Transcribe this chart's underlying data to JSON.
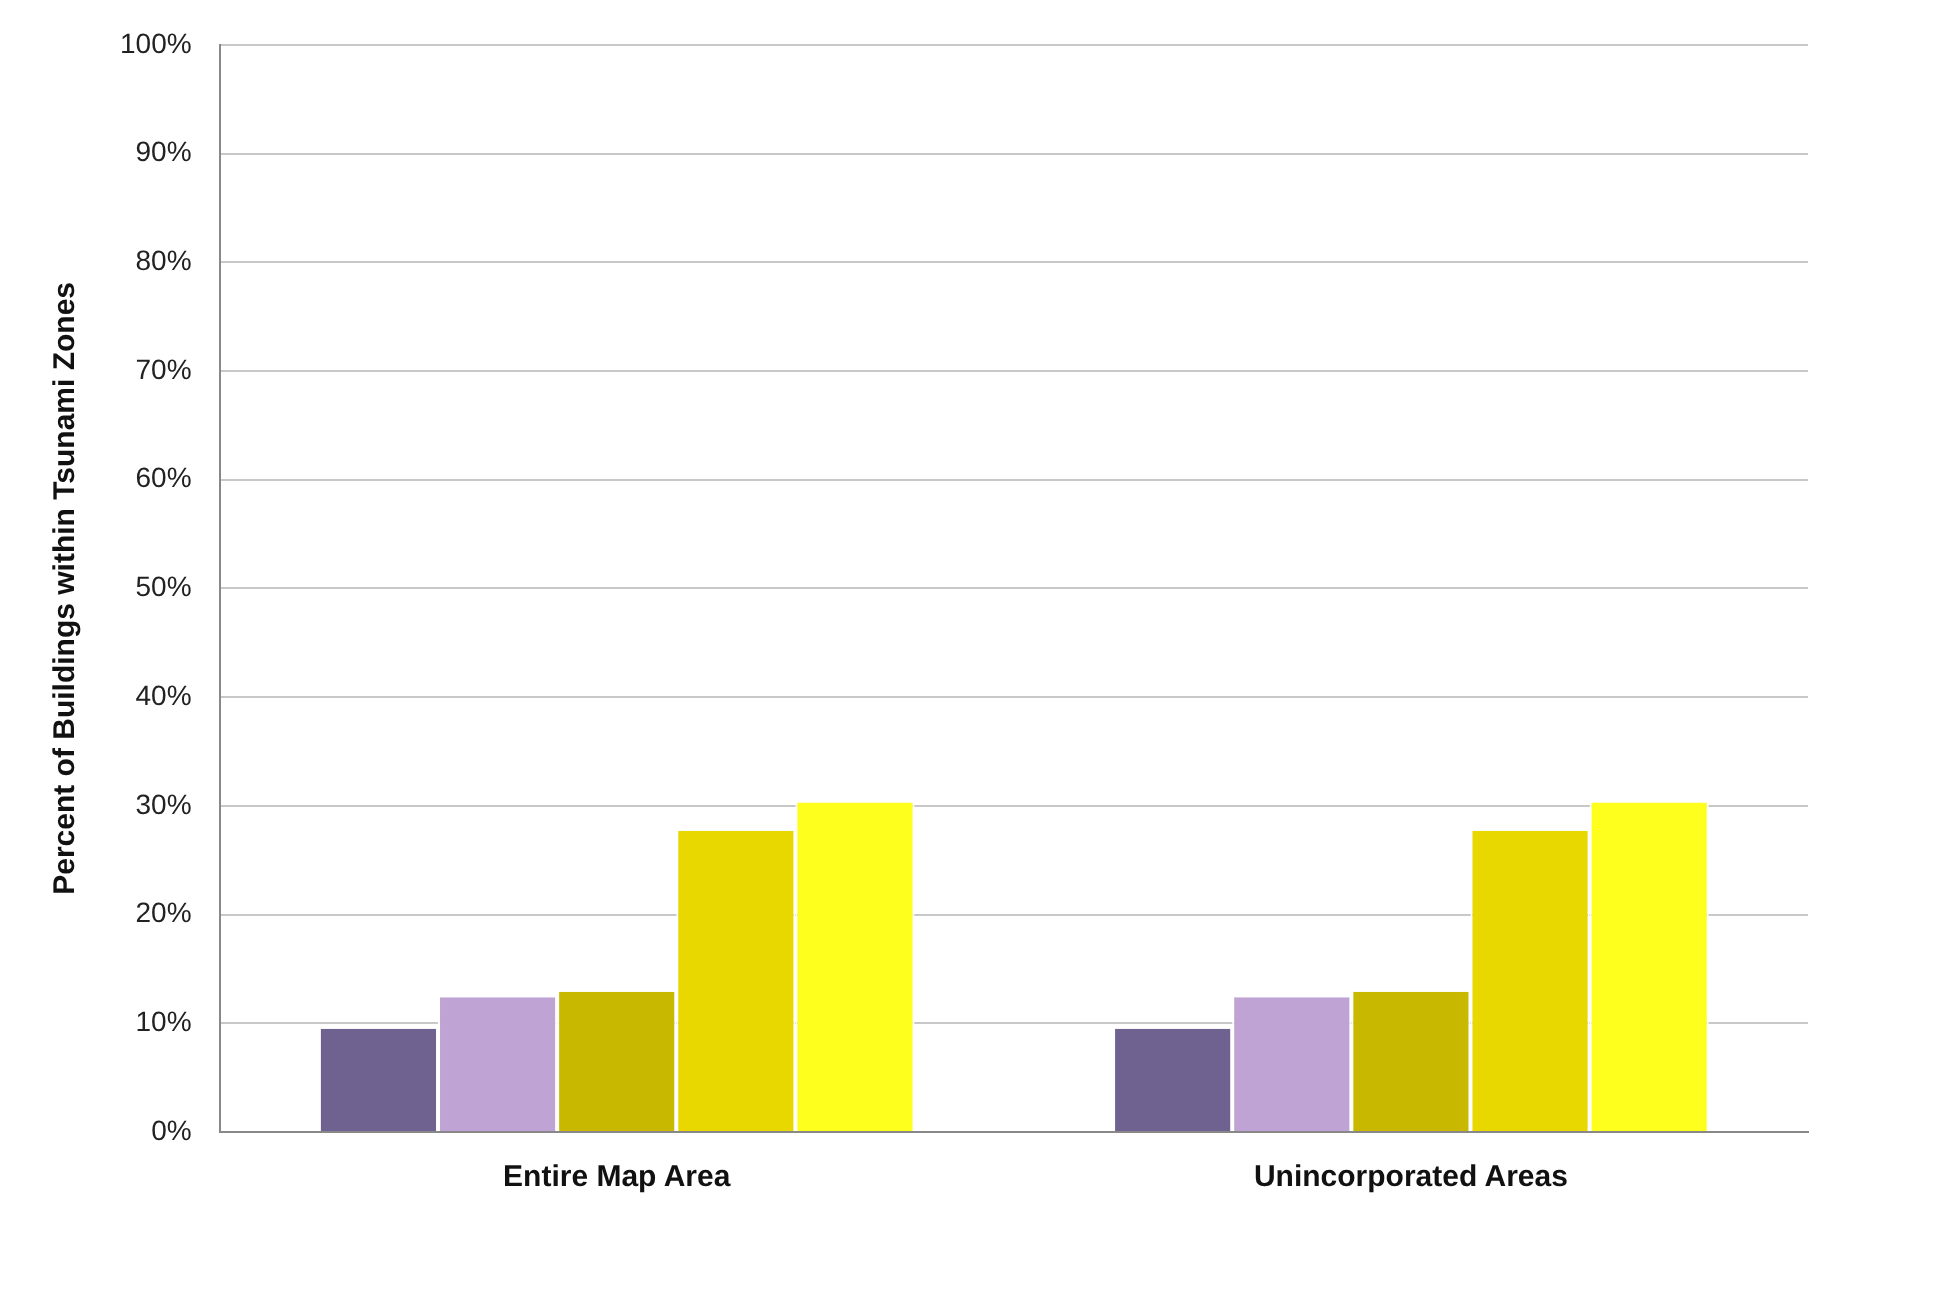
{
  "chart_data": {
    "type": "bar",
    "ylabel": "Percent of Buildings within Tsunami Zones",
    "categories": [
      "Entire Map Area",
      "Unincorporated Areas"
    ],
    "series": [
      {
        "color": "#6f6290",
        "values": [
          9.5,
          9.5
        ]
      },
      {
        "color": "#bfa3d4",
        "values": [
          12.4,
          12.4
        ]
      },
      {
        "color": "#c8b800",
        "values": [
          12.9,
          12.9
        ]
      },
      {
        "color": "#e8d800",
        "values": [
          27.7,
          27.7
        ]
      },
      {
        "color": "#ffff1e",
        "values": [
          30.3,
          30.3
        ]
      }
    ],
    "ylim": [
      0,
      100
    ],
    "yticks": [
      {
        "value": 0,
        "label": "0%"
      },
      {
        "value": 10,
        "label": "10%"
      },
      {
        "value": 20,
        "label": "20%"
      },
      {
        "value": 30,
        "label": "30%"
      },
      {
        "value": 40,
        "label": "40%"
      },
      {
        "value": 50,
        "label": "50%"
      },
      {
        "value": 60,
        "label": "60%"
      },
      {
        "value": 70,
        "label": "70%"
      },
      {
        "value": 80,
        "label": "80%"
      },
      {
        "value": 90,
        "label": "90%"
      },
      {
        "value": 100,
        "label": "100%"
      }
    ],
    "grid": "y",
    "legend": false
  }
}
